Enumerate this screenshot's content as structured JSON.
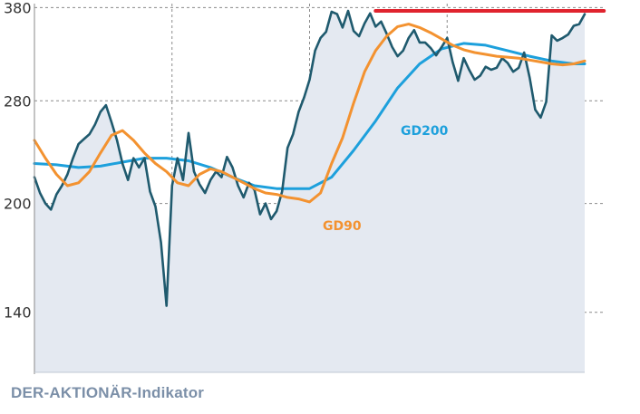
{
  "footer": {
    "label": "DER-AKTIONÄR-Indikator"
  },
  "colors": {
    "price_line": "#1f5a6e",
    "price_fill": "#e4e9f1",
    "gd90": "#f39230",
    "gd200": "#1da0dc",
    "resistance": "#e0232e",
    "grid": "#8a8a8a"
  },
  "chart_data": {
    "type": "line",
    "title": "",
    "xlabel": "",
    "ylabel": "",
    "scale": "log",
    "ylim": [
      115,
      385
    ],
    "yticks": [
      140,
      200,
      280,
      380
    ],
    "ytick_labels": [
      "140",
      "200",
      "280",
      "380"
    ],
    "x_range": [
      0,
      100
    ],
    "x_gridlines": [
      25,
      50,
      75
    ],
    "grid": true,
    "series": [
      {
        "name": "",
        "role": "price",
        "x": [
          0,
          1,
          2,
          3,
          4,
          5,
          6,
          7,
          8,
          9,
          10,
          11,
          12,
          13,
          14,
          15,
          16,
          17,
          18,
          19,
          20,
          21,
          22,
          23,
          24,
          25,
          26,
          27,
          28,
          29,
          30,
          31,
          32,
          33,
          34,
          35,
          36,
          37,
          38,
          39,
          40,
          41,
          42,
          43,
          44,
          45,
          46,
          47,
          48,
          49,
          50,
          51,
          52,
          53,
          54,
          55,
          56,
          57,
          58,
          59,
          60,
          61,
          62,
          63,
          64,
          65,
          66,
          67,
          68,
          69,
          70,
          71,
          72,
          73,
          74,
          75,
          76,
          77,
          78,
          79,
          80,
          81,
          82,
          83,
          84,
          85,
          86,
          87,
          88,
          89,
          90,
          91,
          92,
          93,
          94,
          95,
          96,
          97,
          98,
          99,
          100
        ],
        "y": [
          218,
          207,
          200,
          196,
          206,
          212,
          220,
          232,
          243,
          247,
          251,
          259,
          270,
          276,
          261,
          246,
          228,
          216,
          232,
          225,
          232,
          208,
          198,
          176,
          143,
          212,
          232,
          216,
          252,
          222,
          213,
          207,
          216,
          222,
          218,
          233,
          225,
          212,
          204,
          214,
          209,
          193,
          200,
          190,
          195,
          208,
          240,
          251,
          270,
          283,
          300,
          330,
          344,
          351,
          375,
          372,
          356,
          376,
          352,
          346,
          361,
          373,
          357,
          363,
          349,
          334,
          324,
          330,
          344,
          353,
          339,
          339,
          333,
          325,
          334,
          344,
          318,
          299,
          322,
          310,
          300,
          304,
          313,
          310,
          312,
          322,
          317,
          308,
          312,
          328,
          302,
          272,
          265,
          279,
          347,
          341,
          344,
          348,
          358,
          360,
          372
        ]
      },
      {
        "name": "GD90",
        "role": "moving-average-90",
        "x": [
          0,
          2,
          4,
          6,
          8,
          10,
          12,
          14,
          16,
          18,
          20,
          22,
          24,
          26,
          28,
          30,
          32,
          34,
          36,
          38,
          40,
          42,
          44,
          46,
          48,
          50,
          52,
          54,
          56,
          58,
          60,
          62,
          64,
          66,
          68,
          70,
          72,
          74,
          76,
          78,
          80,
          82,
          84,
          86,
          88,
          90,
          92,
          94,
          96,
          98,
          100
        ],
        "y": [
          246,
          232,
          220,
          212,
          214,
          222,
          236,
          250,
          254,
          246,
          236,
          228,
          222,
          214,
          212,
          220,
          224,
          222,
          218,
          214,
          210,
          207,
          206,
          204,
          203,
          201,
          207,
          228,
          248,
          278,
          308,
          330,
          346,
          357,
          360,
          356,
          350,
          343,
          336,
          331,
          328,
          326,
          324,
          323,
          322,
          320,
          318,
          316,
          315,
          316,
          319
        ]
      },
      {
        "name": "GD200",
        "role": "moving-average-200",
        "x": [
          0,
          4,
          8,
          12,
          16,
          20,
          24,
          28,
          32,
          36,
          40,
          44,
          48,
          50,
          54,
          58,
          62,
          66,
          70,
          74,
          78,
          82,
          86,
          90,
          94,
          98,
          100
        ],
        "y": [
          228,
          227,
          225,
          226,
          229,
          232,
          232,
          230,
          225,
          218,
          212,
          210,
          210,
          210,
          218,
          238,
          262,
          292,
          316,
          332,
          338,
          336,
          330,
          324,
          319,
          316,
          316
        ]
      },
      {
        "name": "",
        "role": "resistance-line",
        "x": [
          62,
          103.5
        ],
        "y": [
          384,
          384
        ]
      }
    ],
    "annotations": [
      {
        "text": "GD90",
        "series": "GD90"
      },
      {
        "text": "GD200",
        "series": "GD200"
      }
    ]
  }
}
